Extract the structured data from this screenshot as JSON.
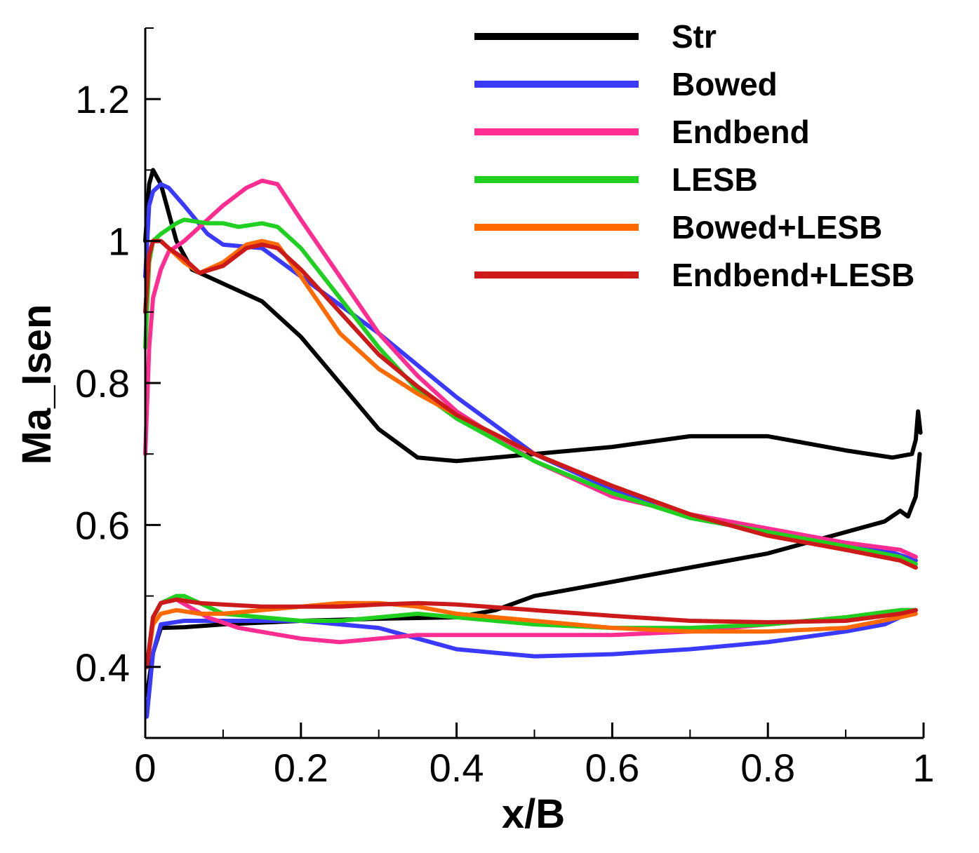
{
  "chart_data": {
    "type": "line",
    "title": "",
    "xlabel": "x/B",
    "ylabel": "Ma_Isen",
    "xlim": [
      0,
      1
    ],
    "ylim": [
      0.3,
      1.3
    ],
    "xticks": [
      0,
      0.2,
      0.4,
      0.6,
      0.8,
      1
    ],
    "xtick_labels": [
      "0",
      "0.2",
      "0.4",
      "0.6",
      "0.8",
      "1"
    ],
    "yticks": [
      0.4,
      0.6,
      0.8,
      1.0,
      1.2
    ],
    "ytick_labels": [
      "0.4",
      "0.6",
      "0.8",
      "1",
      "1.2"
    ],
    "grid": false,
    "legend_position": "top-right",
    "series": [
      {
        "name": "Str",
        "color": "#000000",
        "segments": [
          {
            "x": [
              0,
              0.005,
              0.01,
              0.02,
              0.04,
              0.06,
              0.08,
              0.1,
              0.15,
              0.2,
              0.25,
              0.3,
              0.35,
              0.4,
              0.45,
              0.5,
              0.6,
              0.7,
              0.8,
              0.9,
              0.96,
              0.985,
              0.99,
              0.993,
              0.996
            ],
            "y": [
              1.0,
              1.08,
              1.1,
              1.08,
              1.0,
              0.96,
              0.95,
              0.94,
              0.915,
              0.865,
              0.8,
              0.735,
              0.695,
              0.69,
              0.695,
              0.7,
              0.71,
              0.725,
              0.725,
              0.705,
              0.695,
              0.7,
              0.72,
              0.76,
              0.73
            ]
          },
          {
            "x": [
              0.002,
              0.01,
              0.02,
              0.05,
              0.1,
              0.2,
              0.3,
              0.4,
              0.45,
              0.5,
              0.6,
              0.7,
              0.8,
              0.9,
              0.95,
              0.97,
              0.98,
              0.99,
              0.995
            ],
            "y": [
              0.36,
              0.42,
              0.455,
              0.456,
              0.46,
              0.465,
              0.468,
              0.47,
              0.48,
              0.5,
              0.52,
              0.54,
              0.56,
              0.59,
              0.605,
              0.62,
              0.612,
              0.64,
              0.7
            ]
          }
        ]
      },
      {
        "name": "Bowed",
        "color": "#3a3aff",
        "segments": [
          {
            "x": [
              0,
              0.005,
              0.01,
              0.02,
              0.03,
              0.05,
              0.08,
              0.1,
              0.15,
              0.2,
              0.3,
              0.4,
              0.5,
              0.6,
              0.7,
              0.8,
              0.9,
              0.95,
              0.99
            ],
            "y": [
              0.95,
              1.05,
              1.07,
              1.08,
              1.075,
              1.05,
              1.01,
              0.995,
              0.99,
              0.95,
              0.87,
              0.78,
              0.7,
              0.65,
              0.61,
              0.59,
              0.575,
              0.565,
              0.55
            ]
          },
          {
            "x": [
              0.002,
              0.01,
              0.02,
              0.05,
              0.1,
              0.2,
              0.3,
              0.35,
              0.4,
              0.45,
              0.5,
              0.6,
              0.7,
              0.8,
              0.9,
              0.95,
              0.98,
              0.99
            ],
            "y": [
              0.33,
              0.42,
              0.46,
              0.465,
              0.465,
              0.465,
              0.455,
              0.44,
              0.425,
              0.42,
              0.415,
              0.418,
              0.425,
              0.435,
              0.45,
              0.46,
              0.475,
              0.48
            ]
          }
        ]
      },
      {
        "name": "Endbend",
        "color": "#ff2d91",
        "segments": [
          {
            "x": [
              0,
              0.005,
              0.01,
              0.02,
              0.03,
              0.05,
              0.08,
              0.1,
              0.13,
              0.15,
              0.17,
              0.2,
              0.25,
              0.3,
              0.35,
              0.4,
              0.5,
              0.6,
              0.7,
              0.8,
              0.9,
              0.97,
              0.99
            ],
            "y": [
              0.7,
              0.85,
              0.92,
              0.96,
              0.985,
              1.0,
              1.03,
              1.05,
              1.075,
              1.085,
              1.08,
              1.03,
              0.95,
              0.87,
              0.81,
              0.76,
              0.69,
              0.64,
              0.615,
              0.595,
              0.575,
              0.565,
              0.555
            ]
          },
          {
            "x": [
              0.002,
              0.01,
              0.02,
              0.04,
              0.08,
              0.12,
              0.2,
              0.25,
              0.3,
              0.35,
              0.4,
              0.5,
              0.6,
              0.7,
              0.8,
              0.9,
              0.97,
              0.99
            ],
            "y": [
              0.4,
              0.47,
              0.49,
              0.495,
              0.47,
              0.455,
              0.44,
              0.435,
              0.44,
              0.445,
              0.445,
              0.445,
              0.445,
              0.45,
              0.46,
              0.47,
              0.48,
              0.48
            ]
          }
        ]
      },
      {
        "name": "LESB",
        "color": "#20d020",
        "segments": [
          {
            "x": [
              0,
              0.005,
              0.01,
              0.02,
              0.04,
              0.05,
              0.08,
              0.1,
              0.12,
              0.15,
              0.17,
              0.2,
              0.25,
              0.3,
              0.35,
              0.4,
              0.5,
              0.6,
              0.7,
              0.8,
              0.9,
              0.97,
              0.99
            ],
            "y": [
              0.85,
              0.97,
              1.0,
              1.01,
              1.025,
              1.03,
              1.025,
              1.025,
              1.02,
              1.025,
              1.02,
              0.99,
              0.92,
              0.85,
              0.79,
              0.75,
              0.69,
              0.645,
              0.61,
              0.59,
              0.57,
              0.555,
              0.545
            ]
          },
          {
            "x": [
              0.002,
              0.01,
              0.02,
              0.04,
              0.05,
              0.07,
              0.1,
              0.15,
              0.2,
              0.25,
              0.3,
              0.35,
              0.4,
              0.5,
              0.6,
              0.7,
              0.8,
              0.9,
              0.97,
              0.99
            ],
            "y": [
              0.4,
              0.47,
              0.49,
              0.5,
              0.5,
              0.49,
              0.475,
              0.47,
              0.465,
              0.465,
              0.47,
              0.475,
              0.47,
              0.46,
              0.455,
              0.455,
              0.46,
              0.47,
              0.48,
              0.48
            ]
          }
        ]
      },
      {
        "name": "Bowed+LESB",
        "color": "#ff6a00",
        "segments": [
          {
            "x": [
              0,
              0.005,
              0.01,
              0.02,
              0.03,
              0.05,
              0.07,
              0.1,
              0.13,
              0.15,
              0.17,
              0.2,
              0.25,
              0.3,
              0.35,
              0.4,
              0.5,
              0.6,
              0.7,
              0.8,
              0.9,
              0.97,
              0.99
            ],
            "y": [
              0.9,
              0.98,
              1.0,
              1.0,
              0.99,
              0.97,
              0.955,
              0.97,
              0.995,
              1.0,
              0.995,
              0.95,
              0.87,
              0.82,
              0.785,
              0.755,
              0.7,
              0.655,
              0.615,
              0.585,
              0.565,
              0.55,
              0.54
            ]
          },
          {
            "x": [
              0.002,
              0.01,
              0.02,
              0.04,
              0.07,
              0.1,
              0.15,
              0.2,
              0.25,
              0.3,
              0.35,
              0.4,
              0.5,
              0.6,
              0.7,
              0.8,
              0.9,
              0.97,
              0.99
            ],
            "y": [
              0.4,
              0.46,
              0.475,
              0.48,
              0.475,
              0.475,
              0.48,
              0.485,
              0.49,
              0.49,
              0.485,
              0.475,
              0.465,
              0.455,
              0.45,
              0.45,
              0.455,
              0.47,
              0.475
            ]
          }
        ]
      },
      {
        "name": "Endbend+LESB",
        "color": "#cc1a1a",
        "segments": [
          {
            "x": [
              0,
              0.005,
              0.01,
              0.02,
              0.03,
              0.05,
              0.07,
              0.1,
              0.13,
              0.15,
              0.17,
              0.2,
              0.25,
              0.3,
              0.35,
              0.4,
              0.5,
              0.6,
              0.7,
              0.8,
              0.9,
              0.97,
              0.99
            ],
            "y": [
              0.9,
              0.98,
              1.0,
              1.0,
              0.99,
              0.975,
              0.955,
              0.965,
              0.99,
              0.995,
              0.99,
              0.96,
              0.9,
              0.84,
              0.795,
              0.755,
              0.7,
              0.655,
              0.615,
              0.585,
              0.565,
              0.55,
              0.54
            ]
          },
          {
            "x": [
              0.002,
              0.01,
              0.02,
              0.04,
              0.07,
              0.1,
              0.15,
              0.2,
              0.25,
              0.3,
              0.35,
              0.4,
              0.5,
              0.6,
              0.7,
              0.8,
              0.9,
              0.97,
              0.99
            ],
            "y": [
              0.4,
              0.47,
              0.49,
              0.495,
              0.49,
              0.488,
              0.485,
              0.485,
              0.485,
              0.488,
              0.49,
              0.488,
              0.48,
              0.472,
              0.465,
              0.463,
              0.465,
              0.475,
              0.48
            ]
          }
        ]
      }
    ]
  }
}
